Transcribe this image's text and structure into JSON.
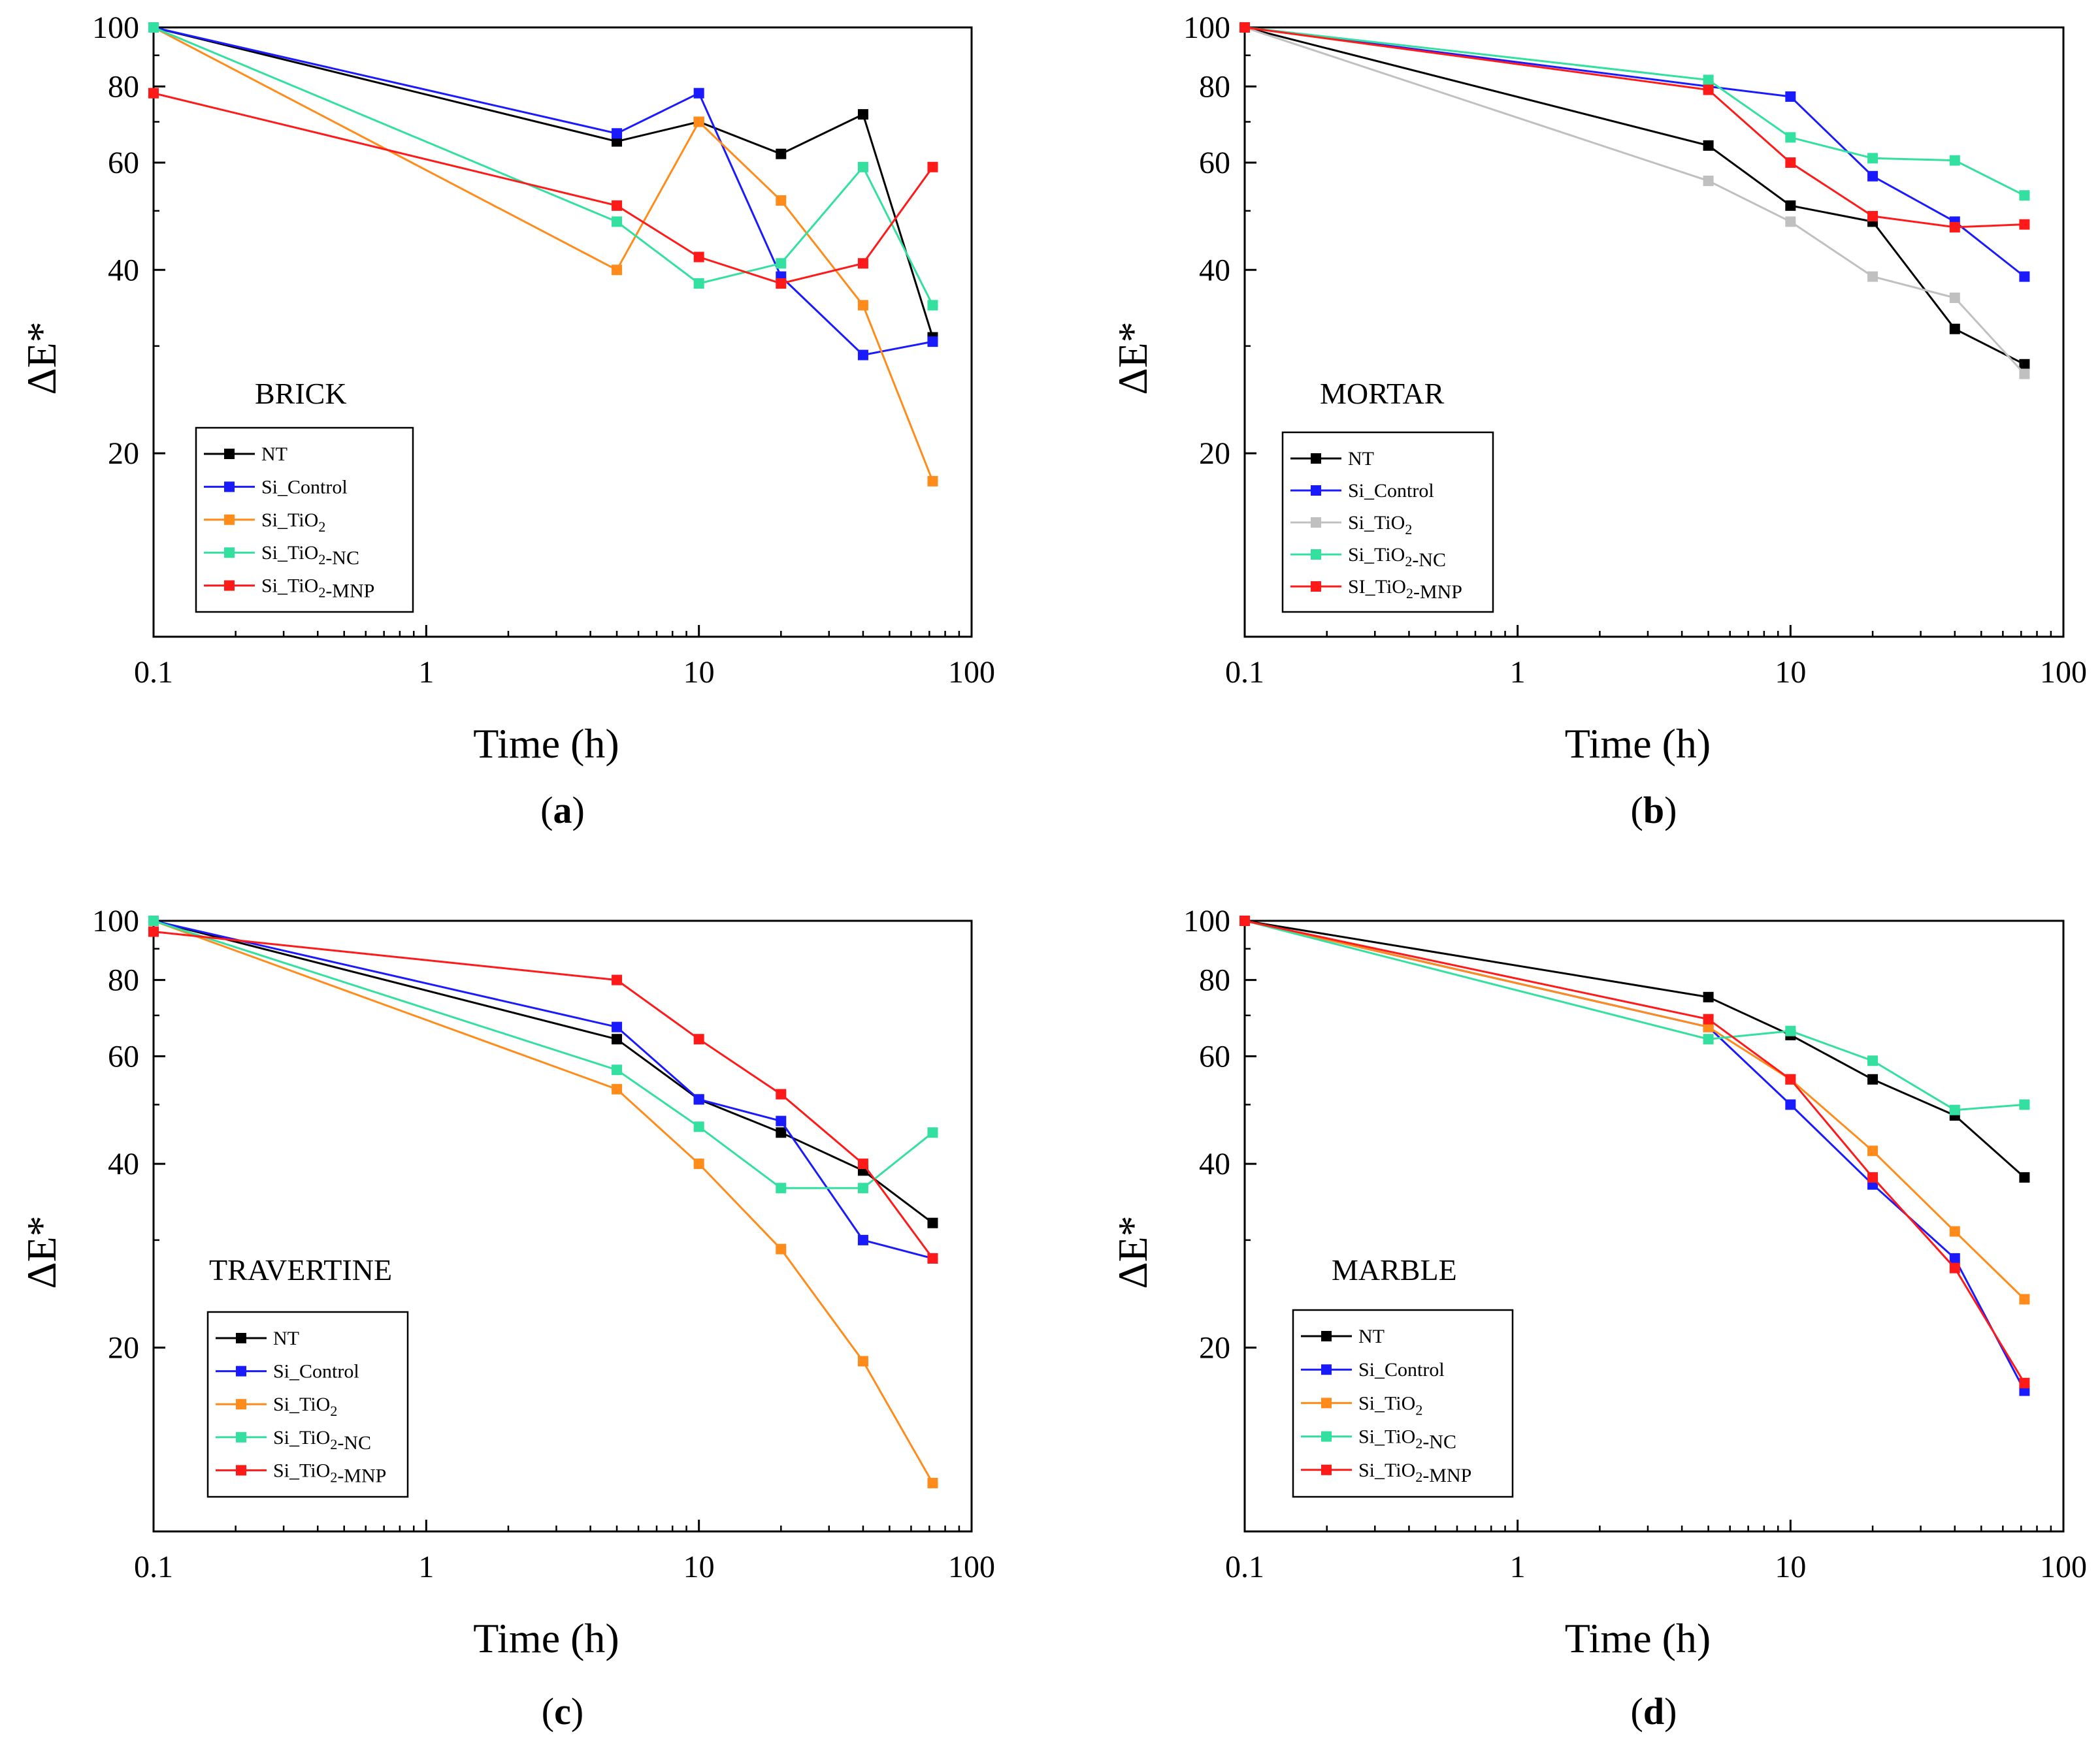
{
  "chart_data": [
    {
      "type": "line",
      "panel_label": "a",
      "title": "BRICK",
      "xlabel": "Time (h)",
      "ylabel": "ΔE*",
      "xscale": "log",
      "yscale": "log",
      "xlim": [
        0.1,
        100
      ],
      "ylim": [
        10,
        100
      ],
      "x_ticks": [
        "0.1",
        "1",
        "10",
        "100"
      ],
      "y_ticks": [
        "20",
        "40",
        "60",
        "80",
        "100"
      ],
      "legend_position": "lower-left",
      "series": [
        {
          "name": "NT",
          "color": "#000000",
          "points": [
            [
              0.1,
              100
            ],
            [
              5,
              65
            ],
            [
              10,
              70
            ],
            [
              20,
              62
            ],
            [
              40,
              72
            ],
            [
              72,
              31
            ]
          ]
        },
        {
          "name": "Si_Control",
          "color": "#1a1aff",
          "points": [
            [
              0.1,
              100
            ],
            [
              5,
              67
            ],
            [
              10,
              78
            ],
            [
              20,
              39
            ],
            [
              40,
              29
            ],
            [
              72,
              30.5
            ]
          ]
        },
        {
          "name": "Si_TiO2",
          "color": "#ff8c1a",
          "points": [
            [
              0.1,
              100
            ],
            [
              5,
              40
            ],
            [
              10,
              70
            ],
            [
              20,
              52
            ],
            [
              40,
              35
            ],
            [
              72,
              18
            ]
          ]
        },
        {
          "name": "Si_TiO2-NC",
          "color": "#33e0a0",
          "points": [
            [
              0.1,
              100
            ],
            [
              5,
              48
            ],
            [
              10,
              38
            ],
            [
              20,
              41
            ],
            [
              40,
              59
            ],
            [
              72,
              35
            ]
          ]
        },
        {
          "name": "Si_TiO2-MNP",
          "color": "#ff1a1a",
          "points": [
            [
              0.1,
              78
            ],
            [
              5,
              51
            ],
            [
              10,
              42
            ],
            [
              20,
              38
            ],
            [
              40,
              41
            ],
            [
              72,
              59
            ]
          ]
        }
      ]
    },
    {
      "type": "line",
      "panel_label": "b",
      "title": "MORTAR",
      "xlabel": "Time (h)",
      "ylabel": "ΔE*",
      "xscale": "log",
      "yscale": "log",
      "xlim": [
        0.1,
        100
      ],
      "ylim": [
        10,
        100
      ],
      "x_ticks": [
        "0.1",
        "1",
        "10",
        "100"
      ],
      "y_ticks": [
        "20",
        "40",
        "60",
        "80",
        "100"
      ],
      "legend_position": "lower-left",
      "series": [
        {
          "name": "NT",
          "color": "#000000",
          "points": [
            [
              0.1,
              100
            ],
            [
              5,
              64
            ],
            [
              10,
              51
            ],
            [
              20,
              48
            ],
            [
              40,
              32
            ],
            [
              72,
              28
            ]
          ]
        },
        {
          "name": "Si_Control",
          "color": "#1a1aff",
          "points": [
            [
              0.1,
              100
            ],
            [
              5,
              80
            ],
            [
              10,
              77
            ],
            [
              20,
              57
            ],
            [
              40,
              48
            ],
            [
              72,
              39
            ]
          ]
        },
        {
          "name": "Si_TiO2",
          "color": "#c0c0c0",
          "points": [
            [
              0.1,
              100
            ],
            [
              5,
              56
            ],
            [
              10,
              48
            ],
            [
              20,
              39
            ],
            [
              40,
              36
            ],
            [
              72,
              27
            ]
          ]
        },
        {
          "name": "Si_TiO2-NC",
          "color": "#33e0a0",
          "points": [
            [
              0.1,
              100
            ],
            [
              5,
              82
            ],
            [
              10,
              66
            ],
            [
              20,
              61
            ],
            [
              40,
              60.5
            ],
            [
              72,
              53
            ]
          ]
        },
        {
          "name": "SI_TiO2-MNP",
          "color": "#ff1a1a",
          "points": [
            [
              0.1,
              100
            ],
            [
              5,
              79
            ],
            [
              10,
              60
            ],
            [
              20,
              49
            ],
            [
              40,
              47
            ],
            [
              72,
              47.5
            ]
          ]
        }
      ]
    },
    {
      "type": "line",
      "panel_label": "c",
      "title": "TRAVERTINE",
      "xlabel": "Time (h)",
      "ylabel": "ΔE*",
      "xscale": "log",
      "yscale": "log",
      "xlim": [
        0.1,
        100
      ],
      "ylim": [
        10,
        100
      ],
      "x_ticks": [
        "0.1",
        "1",
        "10",
        "100"
      ],
      "y_ticks": [
        "20",
        "40",
        "60",
        "80",
        "100"
      ],
      "legend_position": "lower-left",
      "series": [
        {
          "name": "NT",
          "color": "#000000",
          "points": [
            [
              0.1,
              100
            ],
            [
              5,
              64
            ],
            [
              10,
              51
            ],
            [
              20,
              45
            ],
            [
              40,
              39
            ],
            [
              72,
              32
            ]
          ]
        },
        {
          "name": "Si_Control",
          "color": "#1a1aff",
          "points": [
            [
              0.1,
              100
            ],
            [
              5,
              67
            ],
            [
              10,
              51
            ],
            [
              20,
              47
            ],
            [
              40,
              30
            ],
            [
              72,
              28
            ]
          ]
        },
        {
          "name": "Si_TiO2",
          "color": "#ff8c1a",
          "points": [
            [
              0.1,
              100
            ],
            [
              5,
              53
            ],
            [
              10,
              40
            ],
            [
              20,
              29
            ],
            [
              40,
              19
            ],
            [
              72,
              12
            ]
          ]
        },
        {
          "name": "Si_TiO2-NC",
          "color": "#33e0a0",
          "points": [
            [
              0.1,
              100
            ],
            [
              5,
              57
            ],
            [
              10,
              46
            ],
            [
              20,
              36.5
            ],
            [
              40,
              36.5
            ],
            [
              72,
              45
            ]
          ]
        },
        {
          "name": "Si_TiO2-MNP",
          "color": "#ff1a1a",
          "points": [
            [
              0.1,
              96
            ],
            [
              5,
              80
            ],
            [
              10,
              64
            ],
            [
              20,
              52
            ],
            [
              40,
              40
            ],
            [
              72,
              28
            ]
          ]
        }
      ]
    },
    {
      "type": "line",
      "panel_label": "d",
      "title": "MARBLE",
      "xlabel": "Time (h)",
      "ylabel": "ΔE*",
      "xscale": "log",
      "yscale": "log",
      "xlim": [
        0.1,
        100
      ],
      "ylim": [
        10,
        100
      ],
      "x_ticks": [
        "0.1",
        "1",
        "10",
        "100"
      ],
      "y_ticks": [
        "20",
        "40",
        "60",
        "80",
        "100"
      ],
      "legend_position": "lower-left",
      "series": [
        {
          "name": "NT",
          "color": "#000000",
          "points": [
            [
              0.1,
              100
            ],
            [
              5,
              75
            ],
            [
              10,
              65
            ],
            [
              20,
              55
            ],
            [
              40,
              48
            ],
            [
              72,
              38
            ]
          ]
        },
        {
          "name": "Si_Control",
          "color": "#1a1aff",
          "points": [
            [
              0.1,
              100
            ],
            [
              5,
              67
            ],
            [
              10,
              50
            ],
            [
              20,
              37
            ],
            [
              40,
              28
            ],
            [
              72,
              17
            ]
          ]
        },
        {
          "name": "Si_TiO2",
          "color": "#ff8c1a",
          "points": [
            [
              0.1,
              100
            ],
            [
              5,
              67
            ],
            [
              10,
              55
            ],
            [
              20,
              42
            ],
            [
              40,
              31
            ],
            [
              72,
              24
            ]
          ]
        },
        {
          "name": "Si_TiO2-NC",
          "color": "#33e0a0",
          "points": [
            [
              0.1,
              100
            ],
            [
              5,
              64
            ],
            [
              10,
              66
            ],
            [
              20,
              59
            ],
            [
              40,
              49
            ],
            [
              72,
              50
            ]
          ]
        },
        {
          "name": "Si_TiO2-MNP",
          "color": "#ff1a1a",
          "points": [
            [
              0.1,
              100
            ],
            [
              5,
              69
            ],
            [
              10,
              55
            ],
            [
              20,
              38
            ],
            [
              40,
              27
            ],
            [
              72,
              17.5
            ]
          ]
        }
      ]
    }
  ]
}
